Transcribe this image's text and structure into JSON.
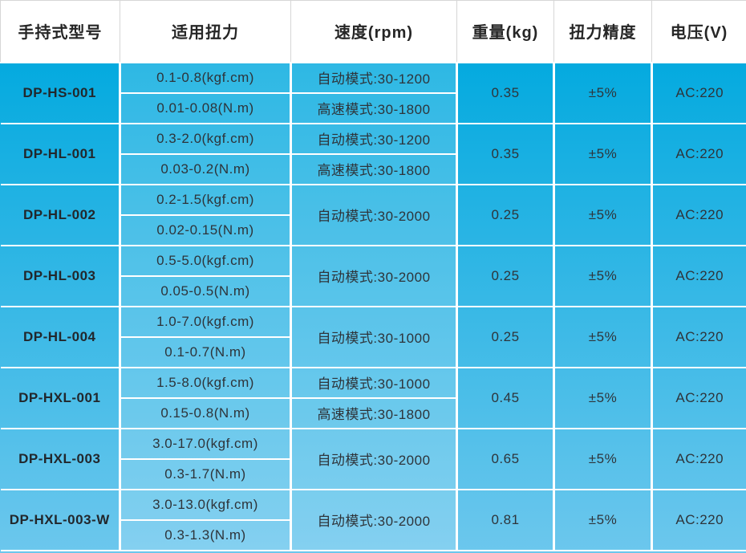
{
  "table": {
    "columns": [
      {
        "label": "手持式型号"
      },
      {
        "label": "适用扭力"
      },
      {
        "label": "速度(rpm)"
      },
      {
        "label": "重量(kg)"
      },
      {
        "label": "扭力精度"
      },
      {
        "label": "电压(V)"
      }
    ],
    "rows": [
      {
        "model": "DP-HS-001",
        "torque": [
          "0.1-0.8(kgf.cm)",
          "0.01-0.08(N.m)"
        ],
        "speed": [
          "自动模式:30-1200",
          "高速模式:30-1800"
        ],
        "weight": "0.35",
        "accuracy": "±5%",
        "voltage": "AC:220"
      },
      {
        "model": "DP-HL-001",
        "torque": [
          "0.3-2.0(kgf.cm)",
          "0.03-0.2(N.m)"
        ],
        "speed": [
          "自动模式:30-1200",
          "高速模式:30-1800"
        ],
        "weight": "0.35",
        "accuracy": "±5%",
        "voltage": "AC:220"
      },
      {
        "model": "DP-HL-002",
        "torque": [
          "0.2-1.5(kgf.cm)",
          "0.02-0.15(N.m)"
        ],
        "speed": [
          "自动模式:30-2000"
        ],
        "weight": "0.25",
        "accuracy": "±5%",
        "voltage": "AC:220"
      },
      {
        "model": "DP-HL-003",
        "torque": [
          "0.5-5.0(kgf.cm)",
          "0.05-0.5(N.m)"
        ],
        "speed": [
          "自动模式:30-2000"
        ],
        "weight": "0.25",
        "accuracy": "±5%",
        "voltage": "AC:220"
      },
      {
        "model": "DP-HL-004",
        "torque": [
          "1.0-7.0(kgf.cm)",
          "0.1-0.7(N.m)"
        ],
        "speed": [
          "自动模式:30-1000"
        ],
        "weight": "0.25",
        "accuracy": "±5%",
        "voltage": "AC:220"
      },
      {
        "model": "DP-HXL-001",
        "torque": [
          "1.5-8.0(kgf.cm)",
          "0.15-0.8(N.m)"
        ],
        "speed": [
          "自动模式:30-1000",
          "高速模式:30-1800"
        ],
        "weight": "0.45",
        "accuracy": "±5%",
        "voltage": "AC:220"
      },
      {
        "model": "DP-HXL-003",
        "torque": [
          "3.0-17.0(kgf.cm)",
          "0.3-1.7(N.m)"
        ],
        "speed": [
          "自动模式:30-2000"
        ],
        "weight": "0.65",
        "accuracy": "±5%",
        "voltage": "AC:220"
      },
      {
        "model": "DP-HXL-003-W",
        "torque": [
          "3.0-13.0(kgf.cm)",
          "0.3-1.3(N.m)"
        ],
        "speed": [
          "自动模式:30-2000"
        ],
        "weight": "0.81",
        "accuracy": "±5%",
        "voltage": "AC:220"
      }
    ]
  },
  "colors": {
    "header_bg": "#ffffff",
    "header_border": "#d6d6d6",
    "header_text": "#262626",
    "body_gradient_top": "#04aadf",
    "body_gradient_bottom": "#6cc7ed",
    "gridline": "#ffffff",
    "body_text": "#2e343a"
  }
}
